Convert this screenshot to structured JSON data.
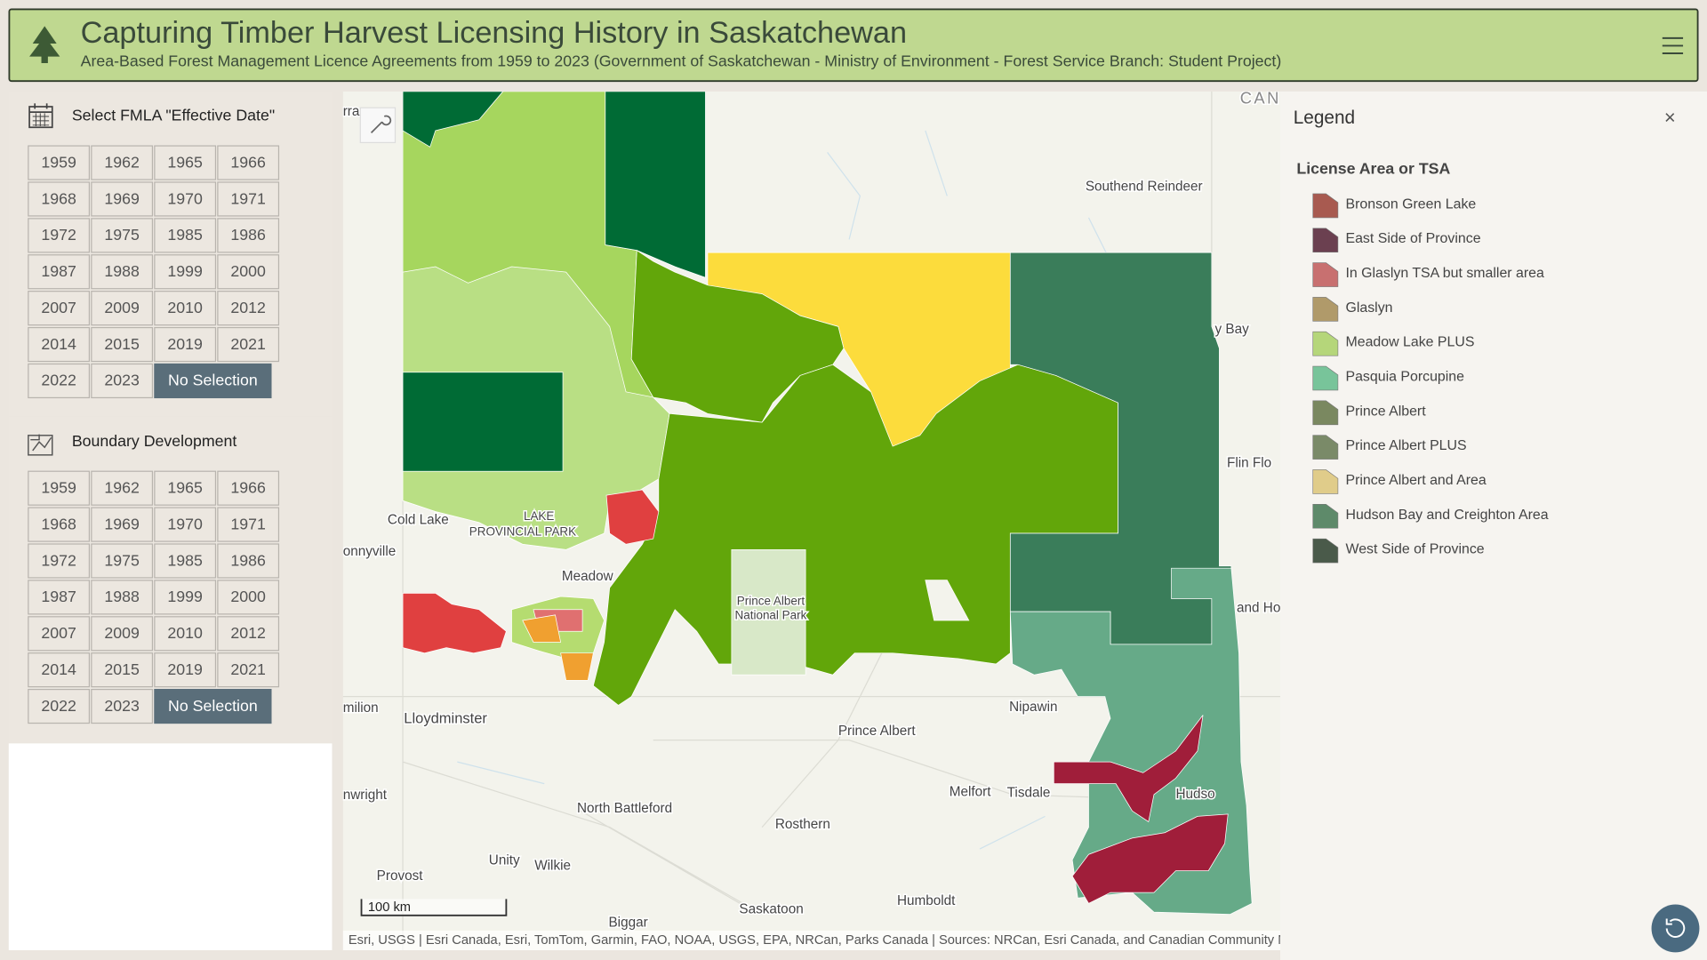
{
  "header": {
    "title": "Capturing Timber Harvest Licensing History in Saskatchewan",
    "subtitle": "Area-Based Forest Management Licence Agreements from 1959 to 2023 (Government of Saskatchewan - Ministry of Environment - Forest Service Branch: Student Project)"
  },
  "panels": [
    {
      "title": "Select FMLA \"Effective Date\"",
      "buttons": [
        "1959",
        "1962",
        "1965",
        "1966",
        "1968",
        "1969",
        "1970",
        "1971",
        "1972",
        "1975",
        "1985",
        "1986",
        "1987",
        "1988",
        "1999",
        "2000",
        "2007",
        "2009",
        "2010",
        "2012",
        "2014",
        "2015",
        "2019",
        "2021",
        "2022",
        "2023",
        "No Selection"
      ]
    },
    {
      "title": "Boundary Development",
      "buttons": [
        "1959",
        "1962",
        "1965",
        "1966",
        "1968",
        "1969",
        "1970",
        "1971",
        "1972",
        "1975",
        "1985",
        "1986",
        "1987",
        "1988",
        "1999",
        "2000",
        "2007",
        "2009",
        "2010",
        "2012",
        "2014",
        "2015",
        "2019",
        "2021",
        "2022",
        "2023",
        "No Selection"
      ]
    }
  ],
  "map": {
    "labels": [
      "CAN",
      "rra",
      "Southend Reindeer",
      "y Bay",
      "Flin Flo",
      "Cold Lake",
      "LAKE",
      "PROVINCIAL PARK",
      "onnyville",
      "Meadow",
      "Prince Albert",
      "National Park",
      "and Ho",
      "milion",
      "Lloydminster",
      "Nipawin",
      "Prince Albert",
      "nwright",
      "North Battleford",
      "Melfort",
      "Tisdale",
      "Hudso",
      "Rosthern",
      "Unity",
      "Wilkie",
      "Provost",
      "Biggar",
      "Saskatoon",
      "Humboldt"
    ],
    "scale": "100 km",
    "attribution": "Esri, USGS | Esri Canada, Esri, TomTom, Garmin, FAO, NOAA, USGS, EPA, NRCan, Parks Canada | Sources: NRCan, Esri Canada, and Canadian Community Maps contributors"
  },
  "legend": {
    "title": "Legend",
    "close": "×",
    "section": "License Area or TSA",
    "items": [
      {
        "name": "Bronson Green Lake",
        "color": "#a85a50"
      },
      {
        "name": "East Side of Province",
        "color": "#6b4050"
      },
      {
        "name": "In Glaslyn TSA but smaller area",
        "color": "#c87070"
      },
      {
        "name": "Glaslyn",
        "color": "#b09a6a"
      },
      {
        "name": "Meadow Lake PLUS",
        "color": "#b5d67a"
      },
      {
        "name": "Pasquia Porcupine",
        "color": "#78c49a"
      },
      {
        "name": "Prince Albert",
        "color": "#7a8860"
      },
      {
        "name": "Prince Albert PLUS",
        "color": "#7a8a68"
      },
      {
        "name": "Prince Albert and Area",
        "color": "#e0cc8a"
      },
      {
        "name": "Hudson Bay and Creighton Area",
        "color": "#5e8a6a"
      },
      {
        "name": "West Side of Province",
        "color": "#4a5a4a"
      }
    ]
  }
}
